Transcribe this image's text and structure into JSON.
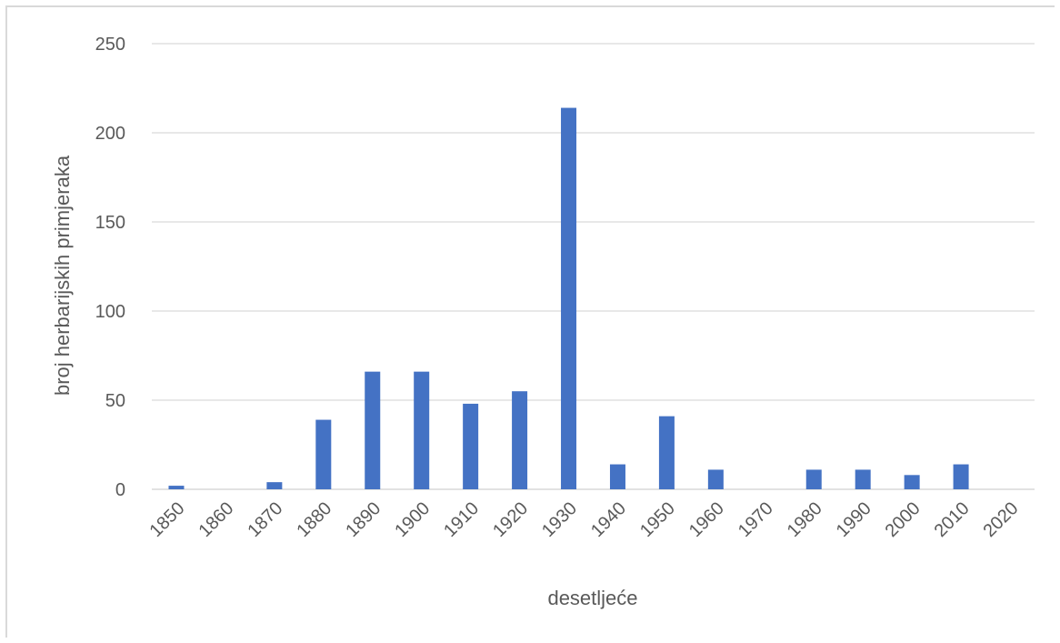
{
  "chart_data": {
    "type": "bar",
    "title": "",
    "xlabel": "desetljeće",
    "ylabel": "broj herbarijskih primjeraka",
    "categories": [
      "1850",
      "1860",
      "1870",
      "1880",
      "1890",
      "1900",
      "1910",
      "1920",
      "1930",
      "1940",
      "1950",
      "1960",
      "1970",
      "1980",
      "1990",
      "2000",
      "2010",
      "2020"
    ],
    "series": [
      {
        "values": [
          2,
          0,
          4,
          39,
          66,
          66,
          48,
          55,
          214,
          14,
          41,
          11,
          0,
          11,
          11,
          8,
          14,
          0
        ]
      }
    ],
    "ylim": [
      0,
      250
    ],
    "yticks": [
      0,
      50,
      100,
      150,
      200,
      250
    ],
    "grid": true,
    "legend": "none",
    "colors": {
      "bar": "#4472c4",
      "grid": "#d9d9d9",
      "text": "#595959"
    }
  }
}
